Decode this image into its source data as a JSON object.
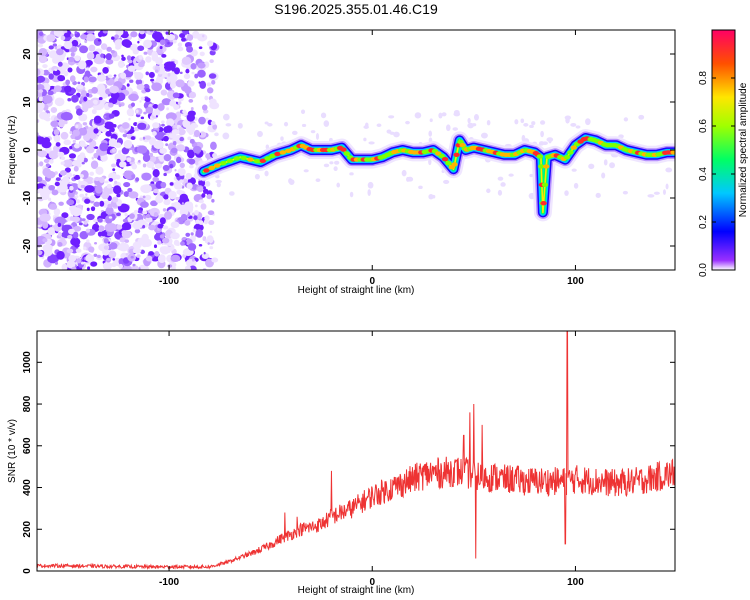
{
  "title": "S196.2025.355.01.46.C19",
  "chart_data": [
    {
      "type": "heatmap",
      "name": "spectrogram",
      "xlabel": "Height of straight line (km)",
      "ylabel": "Frequency (Hz)",
      "xlim": [
        -165,
        149
      ],
      "ylim": [
        -25,
        25
      ],
      "x_ticks": [
        -100,
        0,
        100
      ],
      "y_ticks": [
        -20,
        -10,
        0,
        10,
        20
      ],
      "noise_region_x": [
        -165,
        -83
      ],
      "signal_track": {
        "x": [
          -83,
          -75,
          -65,
          -55,
          -48,
          -40,
          -35,
          -30,
          -25,
          -20,
          -15,
          -10,
          -5,
          0,
          5,
          10,
          15,
          20,
          25,
          30,
          35,
          40,
          43,
          46,
          50,
          55,
          60,
          65,
          70,
          75,
          80,
          83,
          84,
          86,
          90,
          95,
          100,
          105,
          110,
          115,
          120,
          125,
          130,
          135,
          140,
          145,
          149
        ],
        "freq": [
          -4.5,
          -3,
          -1.5,
          -2.5,
          -1,
          0,
          1,
          0,
          0,
          0,
          0.5,
          -2,
          -2,
          -2,
          -1.5,
          -0.5,
          0,
          -0.5,
          -0.5,
          0,
          -1.5,
          -4,
          2,
          0,
          0.5,
          0,
          -0.5,
          -1,
          -1,
          0,
          -0.5,
          -1.5,
          -13,
          -1.5,
          -1,
          -2,
          1,
          2.5,
          2,
          1,
          1,
          0,
          -0.5,
          -1,
          -1,
          -0.5,
          -0.5
        ]
      },
      "colorbar": {
        "label": "Normalized spectral amplitude",
        "range": [
          0.0,
          1.0
        ],
        "ticks": [
          "0.0",
          "0.2",
          "0.4",
          "0.6",
          "0.8"
        ],
        "colors": [
          "#ffffff",
          "#7d00ff",
          "#0000ff",
          "#00c8ff",
          "#00ff64",
          "#c8ff00",
          "#ffe600",
          "#ff5000",
          "#ff0064"
        ]
      }
    },
    {
      "type": "line",
      "name": "snr",
      "xlabel": "Height of straight line (km)",
      "ylabel": "SNR (10 * v/v)",
      "xlim": [
        -165,
        149
      ],
      "ylim": [
        0,
        1150
      ],
      "x_ticks": [
        -100,
        0,
        100
      ],
      "y_ticks": [
        0,
        200,
        400,
        600,
        800,
        1000
      ],
      "color": "#ee3333",
      "baseline": {
        "x": [
          -165,
          -150,
          -130,
          -110,
          -90,
          -80,
          -72,
          -65,
          -58,
          -50,
          -45,
          -40,
          -35,
          -30,
          -25,
          -20,
          -15,
          -10,
          -5,
          0,
          5,
          10,
          15,
          20,
          25,
          30,
          35,
          40,
          45,
          50,
          55,
          60,
          65,
          70,
          75,
          80,
          85,
          90,
          95,
          100,
          110,
          120,
          130,
          140,
          149
        ],
        "y": [
          25,
          25,
          22,
          20,
          20,
          20,
          40,
          65,
          90,
          125,
          155,
          175,
          200,
          210,
          225,
          260,
          280,
          300,
          330,
          360,
          380,
          400,
          420,
          440,
          460,
          470,
          470,
          480,
          470,
          460,
          450,
          450,
          440,
          440,
          430,
          430,
          430,
          430,
          430,
          440,
          430,
          420,
          430,
          450,
          470
        ]
      },
      "spikes": [
        {
          "x": -43,
          "y": 280
        },
        {
          "x": -37,
          "y": 260
        },
        {
          "x": -20,
          "y": 480
        },
        {
          "x": 45,
          "y": 650
        },
        {
          "x": 48,
          "y": 760
        },
        {
          "x": 50,
          "y": 800
        },
        {
          "x": 51,
          "y": 60
        },
        {
          "x": 54,
          "y": 700
        },
        {
          "x": 96,
          "y": 1150
        },
        {
          "x": 95,
          "y": 130
        }
      ]
    }
  ]
}
